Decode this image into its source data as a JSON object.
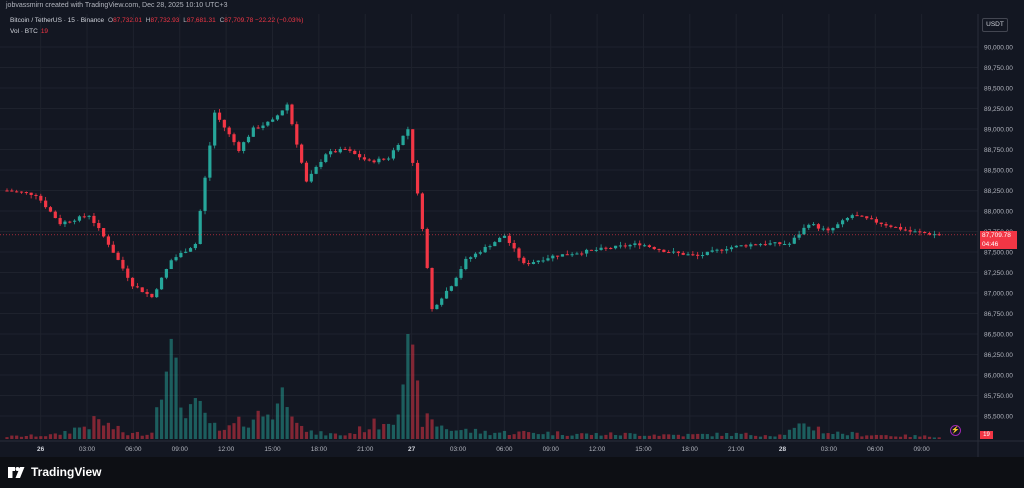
{
  "header": {
    "credit": "jobvassmirn created with TradingView.com, Dec 28, 2025 10:10 UTC+3"
  },
  "legend": {
    "symbol": "Bitcoin / TetherUS · 15 · Binance",
    "o_label": "O",
    "o_value": "87,732.01",
    "h_label": "H",
    "h_value": "87,732.93",
    "l_label": "L",
    "l_value": "87,681.31",
    "c_label": "C",
    "c_value": "87,709.78",
    "change": "−22.22 (−0.03%)",
    "vol_label": "Vol · BTC",
    "vol_value": "19"
  },
  "currency_button": "USDT",
  "price_tag": {
    "price": "87,709.78",
    "countdown": "04:46"
  },
  "volume_tag": "19",
  "brand": "TradingView",
  "colors": {
    "background": "#131722",
    "up": "#26a69a",
    "down": "#f23645",
    "grid": "#1e222d",
    "text": "#b2b5be"
  },
  "chart_data": {
    "type": "candlestick",
    "symbol": "BTCUSDT",
    "interval": "15",
    "yaxis": {
      "ticks": [
        "90,000.00",
        "89,750.00",
        "89,500.00",
        "89,250.00",
        "89,000.00",
        "88,750.00",
        "88,500.00",
        "88,250.00",
        "88,000.00",
        "87,750.00",
        "87,500.00",
        "87,250.00",
        "87,000.00",
        "86,750.00",
        "86,500.00",
        "86,250.00",
        "86,000.00",
        "85,750.00",
        "85,500.00"
      ],
      "tick_values": [
        90000,
        89750,
        89500,
        89250,
        89000,
        88750,
        88500,
        88250,
        88000,
        87750,
        87500,
        87250,
        87000,
        86750,
        86500,
        86250,
        86000,
        85750,
        85500
      ]
    },
    "xaxis": {
      "ticks": [
        "26",
        "03:00",
        "06:00",
        "09:00",
        "12:00",
        "15:00",
        "18:00",
        "21:00",
        "27",
        "03:00",
        "06:00",
        "09:00",
        "12:00",
        "15:00",
        "18:00",
        "21:00",
        "28",
        "03:00",
        "06:00",
        "09:00"
      ],
      "bold": [
        "26",
        "27",
        "28"
      ]
    },
    "price_path": [
      [
        0,
        88250
      ],
      [
        6,
        88200
      ],
      [
        11,
        87850
      ],
      [
        17,
        87950
      ],
      [
        21,
        87600
      ],
      [
        26,
        87100
      ],
      [
        30,
        86950
      ],
      [
        34,
        87400
      ],
      [
        39,
        87600
      ],
      [
        43,
        89200
      ],
      [
        48,
        88750
      ],
      [
        51,
        89000
      ],
      [
        55,
        89100
      ],
      [
        58,
        89300
      ],
      [
        62,
        88350
      ],
      [
        66,
        88700
      ],
      [
        70,
        88750
      ],
      [
        75,
        88600
      ],
      [
        79,
        88650
      ],
      [
        83,
        89000
      ],
      [
        86,
        87800
      ],
      [
        88,
        86800
      ],
      [
        92,
        87100
      ],
      [
        95,
        87400
      ],
      [
        99,
        87550
      ],
      [
        103,
        87700
      ],
      [
        107,
        87350
      ],
      [
        113,
        87450
      ],
      [
        119,
        87500
      ],
      [
        125,
        87550
      ],
      [
        131,
        87600
      ],
      [
        137,
        87500
      ],
      [
        143,
        87450
      ],
      [
        149,
        87550
      ],
      [
        155,
        87600
      ],
      [
        162,
        87600
      ],
      [
        166,
        87850
      ],
      [
        170,
        87750
      ],
      [
        175,
        87950
      ],
      [
        181,
        87850
      ],
      [
        187,
        87750
      ],
      [
        193,
        87710
      ]
    ],
    "volume_path": [
      [
        0,
        3
      ],
      [
        10,
        5
      ],
      [
        19,
        22
      ],
      [
        25,
        6
      ],
      [
        30,
        8
      ],
      [
        33,
        130
      ],
      [
        36,
        45
      ],
      [
        40,
        35
      ],
      [
        44,
        8
      ],
      [
        50,
        25
      ],
      [
        55,
        35
      ],
      [
        58,
        62
      ],
      [
        62,
        8
      ],
      [
        70,
        5
      ],
      [
        77,
        20
      ],
      [
        80,
        28
      ],
      [
        83,
        110
      ],
      [
        86,
        25
      ],
      [
        92,
        12
      ],
      [
        100,
        8
      ],
      [
        110,
        8
      ],
      [
        120,
        6
      ],
      [
        130,
        6
      ],
      [
        140,
        5
      ],
      [
        150,
        6
      ],
      [
        160,
        5
      ],
      [
        166,
        18
      ],
      [
        170,
        8
      ],
      [
        176,
        6
      ],
      [
        185,
        4
      ],
      [
        193,
        3
      ]
    ],
    "last_price": 87709.78,
    "last_volume": 19
  }
}
